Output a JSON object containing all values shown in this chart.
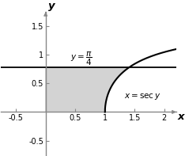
{
  "xlim": [
    -0.75,
    2.2
  ],
  "ylim": [
    -0.75,
    1.75
  ],
  "xticks": [
    -0.5,
    0.5,
    1.0,
    1.5,
    2.0
  ],
  "yticks": [
    -0.5,
    0.5,
    1.0,
    1.5
  ],
  "xtick_labels": [
    "-0.5",
    "0.5",
    "1",
    "1.5",
    "2"
  ],
  "ytick_labels": [
    "-0.5",
    "0.5",
    "1",
    "1.5"
  ],
  "xlabel": "x",
  "ylabel": "y",
  "pi_over_4": 0.7853981633974483,
  "shade_color": "#d3d3d3",
  "shade_alpha": 1.0,
  "line_color": "#000000",
  "curve_color": "#000000",
  "axis_color": "#888888",
  "bg_color": "#ffffff",
  "figsize": [
    2.34,
    1.97
  ],
  "dpi": 100,
  "tick_fontsize": 7.0,
  "label_fontsize": 9.5
}
